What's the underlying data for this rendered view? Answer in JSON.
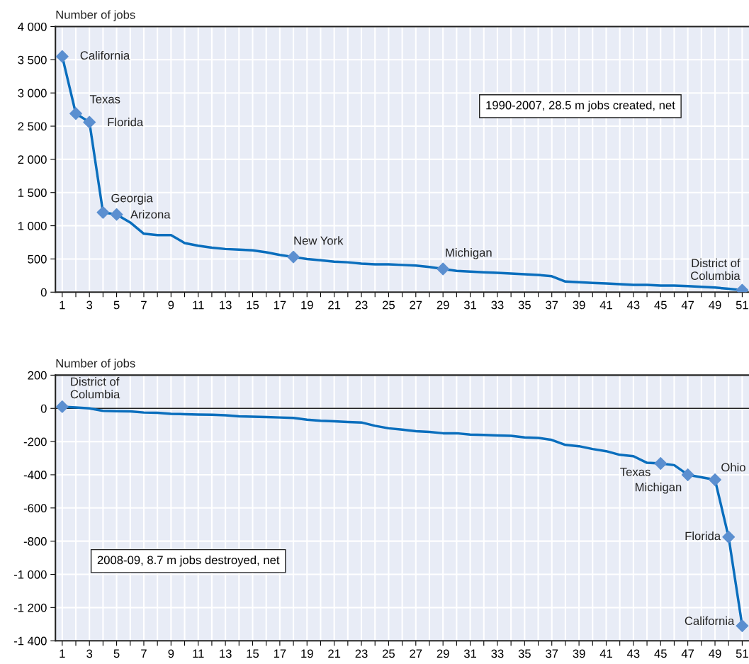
{
  "chart_data": [
    {
      "type": "line",
      "ylabel": "Number of jobs",
      "x": [
        1,
        2,
        3,
        4,
        5,
        6,
        7,
        8,
        9,
        10,
        11,
        12,
        13,
        14,
        15,
        16,
        17,
        18,
        19,
        20,
        21,
        22,
        23,
        24,
        25,
        26,
        27,
        28,
        29,
        30,
        31,
        32,
        33,
        34,
        35,
        36,
        37,
        38,
        39,
        40,
        41,
        42,
        43,
        44,
        45,
        46,
        47,
        48,
        49,
        50,
        51
      ],
      "series": [
        {
          "color": "#0a6ebd",
          "marker": "none",
          "values": [
            3550,
            2690,
            2560,
            1200,
            1170,
            1050,
            880,
            860,
            860,
            740,
            700,
            670,
            650,
            640,
            630,
            600,
            560,
            530,
            500,
            480,
            460,
            450,
            430,
            420,
            420,
            410,
            400,
            380,
            350,
            320,
            310,
            300,
            290,
            280,
            270,
            260,
            240,
            160,
            150,
            140,
            130,
            120,
            110,
            110,
            100,
            100,
            90,
            80,
            70,
            50,
            30
          ]
        },
        {
          "type": "scatter",
          "color": "#5b8fd0",
          "marker": "diamond",
          "x": [
            1,
            2,
            3,
            4,
            5,
            18,
            29,
            51
          ],
          "values": [
            3550,
            2690,
            2560,
            1200,
            1170,
            530,
            350,
            30
          ]
        }
      ],
      "xlim": [
        0.5,
        51.5
      ],
      "xticks": [
        1,
        {
          "value": 2,
          "label": null
        },
        3,
        {
          "value": 4,
          "label": null
        },
        5,
        {
          "value": 6,
          "label": null
        },
        7,
        {
          "value": 8,
          "label": null
        },
        9,
        {
          "value": 10,
          "label": null
        },
        11,
        {
          "value": 12,
          "label": null
        },
        13,
        {
          "value": 14,
          "label": null
        },
        15,
        {
          "value": 16,
          "label": null
        },
        17,
        {
          "value": 18,
          "label": null
        },
        19,
        {
          "value": 20,
          "label": null
        },
        21,
        {
          "value": 22,
          "label": null
        },
        23,
        {
          "value": 24,
          "label": null
        },
        25,
        {
          "value": 26,
          "label": null
        },
        27,
        {
          "value": 28,
          "label": null
        },
        29,
        {
          "value": 30,
          "label": null
        },
        31,
        {
          "value": 32,
          "label": null
        },
        33,
        {
          "value": 34,
          "label": null
        },
        35,
        {
          "value": 36,
          "label": null
        },
        37,
        {
          "value": 38,
          "label": null
        },
        39,
        {
          "value": 40,
          "label": null
        },
        41,
        {
          "value": 42,
          "label": null
        },
        43,
        {
          "value": 44,
          "label": null
        },
        45,
        {
          "value": 46,
          "label": null
        },
        47,
        {
          "value": 48,
          "label": null
        },
        49,
        {
          "value": 50,
          "label": null
        },
        51
      ],
      "ylim": [
        0,
        4000
      ],
      "yticks": [
        0,
        500,
        {
          "value": 1000,
          "label": "1 000"
        },
        {
          "value": 1500,
          "label": "1 500"
        },
        {
          "value": 2000,
          "label": "2 000"
        },
        {
          "value": 2500,
          "label": "2 500"
        },
        {
          "value": 3000,
          "label": "3 000"
        },
        {
          "value": 3500,
          "label": "3 500"
        },
        {
          "value": 4000,
          "label": "4 000"
        }
      ],
      "grid": true,
      "legend": false,
      "annotations": [
        {
          "text": "California",
          "x": 1,
          "y": 3550
        },
        {
          "text": "Texas",
          "x": 2,
          "y": 2690
        },
        {
          "text": "Florida",
          "x": 3,
          "y": 2560
        },
        {
          "text": "Georgia",
          "x": 4,
          "y": 1200
        },
        {
          "text": "Arizona",
          "x": 5,
          "y": 1170
        },
        {
          "text": "New York",
          "x": 18,
          "y": 530
        },
        {
          "text": "Michigan",
          "x": 29,
          "y": 350
        },
        {
          "text": "District of\nColumbia",
          "x": 51,
          "y": 30
        },
        "1990-2007, 28.5 m jobs created, net"
      ]
    },
    {
      "type": "line",
      "ylabel": "Number of jobs",
      "x": [
        1,
        2,
        3,
        4,
        5,
        6,
        7,
        8,
        9,
        10,
        11,
        12,
        13,
        14,
        15,
        16,
        17,
        18,
        19,
        20,
        21,
        22,
        23,
        24,
        25,
        26,
        27,
        28,
        29,
        30,
        31,
        32,
        33,
        34,
        35,
        36,
        37,
        38,
        39,
        40,
        41,
        42,
        43,
        44,
        45,
        46,
        47,
        48,
        49,
        50,
        51
      ],
      "series": [
        {
          "color": "#0a6ebd",
          "marker": "none",
          "values": [
            10,
            5,
            0,
            -15,
            -17,
            -18,
            -25,
            -27,
            -33,
            -35,
            -37,
            -38,
            -42,
            -48,
            -50,
            -52,
            -55,
            -58,
            -68,
            -75,
            -78,
            -82,
            -85,
            -105,
            -120,
            -128,
            -138,
            -142,
            -150,
            -150,
            -158,
            -160,
            -163,
            -165,
            -175,
            -178,
            -190,
            -220,
            -228,
            -245,
            -258,
            -280,
            -288,
            -328,
            -332,
            -342,
            -400,
            -415,
            -430,
            -775,
            -1310
          ]
        },
        {
          "type": "scatter",
          "color": "#5b8fd0",
          "marker": "diamond",
          "x": [
            1,
            45,
            47,
            49,
            50,
            51
          ],
          "values": [
            10,
            -332,
            -400,
            -430,
            -775,
            -1310
          ]
        }
      ],
      "xlim": [
        0.5,
        51.5
      ],
      "xticks": [
        1,
        {
          "value": 2,
          "label": null
        },
        3,
        {
          "value": 4,
          "label": null
        },
        5,
        {
          "value": 6,
          "label": null
        },
        7,
        {
          "value": 8,
          "label": null
        },
        9,
        {
          "value": 10,
          "label": null
        },
        11,
        {
          "value": 12,
          "label": null
        },
        13,
        {
          "value": 14,
          "label": null
        },
        15,
        {
          "value": 16,
          "label": null
        },
        17,
        {
          "value": 18,
          "label": null
        },
        19,
        {
          "value": 20,
          "label": null
        },
        21,
        {
          "value": 22,
          "label": null
        },
        23,
        {
          "value": 24,
          "label": null
        },
        25,
        {
          "value": 26,
          "label": null
        },
        27,
        {
          "value": 28,
          "label": null
        },
        29,
        {
          "value": 30,
          "label": null
        },
        31,
        {
          "value": 32,
          "label": null
        },
        33,
        {
          "value": 34,
          "label": null
        },
        35,
        {
          "value": 36,
          "label": null
        },
        37,
        {
          "value": 38,
          "label": null
        },
        39,
        {
          "value": 40,
          "label": null
        },
        41,
        {
          "value": 42,
          "label": null
        },
        43,
        {
          "value": 44,
          "label": null
        },
        45,
        {
          "value": 46,
          "label": null
        },
        47,
        {
          "value": 48,
          "label": null
        },
        49,
        {
          "value": 50,
          "label": null
        },
        51
      ],
      "ylim": [
        -1400,
        200
      ],
      "yticks": [
        {
          "value": -1400,
          "label": "-1 400"
        },
        {
          "value": -1200,
          "label": "-1 200"
        },
        {
          "value": -1000,
          "label": "-1 000"
        },
        {
          "value": -800,
          "label": "-800"
        },
        {
          "value": -600,
          "label": "-600"
        },
        {
          "value": -400,
          "label": "-400"
        },
        {
          "value": -200,
          "label": "-200"
        },
        0,
        200
      ],
      "ref_lines": [
        {
          "axis": "y",
          "value": 0,
          "color": "#222222",
          "line_style": "solid"
        }
      ],
      "grid": true,
      "legend": false,
      "annotations": [
        {
          "text": "District of\nColumbia",
          "x": 1,
          "y": 10
        },
        {
          "text": "Texas",
          "x": 45,
          "y": -332
        },
        {
          "text": "Michigan",
          "x": 47,
          "y": -400
        },
        {
          "text": "Ohio",
          "x": 49,
          "y": -430
        },
        {
          "text": "Florida",
          "x": 50,
          "y": -775
        },
        {
          "text": "California",
          "x": 51,
          "y": -1310
        },
        "2008-09, 8.7 m jobs destroyed, net"
      ]
    }
  ]
}
